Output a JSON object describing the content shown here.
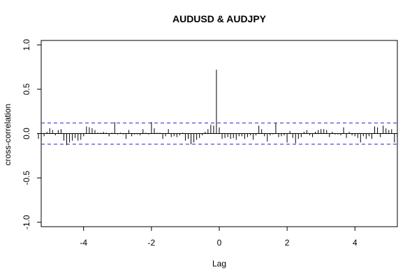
{
  "chart_data": {
    "type": "bar",
    "title": "AUDUSD & AUDJPY",
    "xlabel": "Lag",
    "ylabel": "cross-correlation",
    "xlim": [
      -5.25,
      5.25
    ],
    "ylim": [
      -1.05,
      1.05
    ],
    "x_ticks": [
      "-4",
      "-2",
      "0",
      "2",
      "4"
    ],
    "y_ticks": [
      "-1.0",
      "-0.5",
      "0.0",
      "0.5",
      "1.0"
    ],
    "confidence_bounds": [
      0.12,
      -0.12
    ],
    "lag_step": 0.0833,
    "colors": {
      "bars": "#000000",
      "bounds": "#2222cc",
      "axes": "#000000"
    },
    "values": [
      -0.06,
      -0.08,
      -0.03,
      0.02,
      0.06,
      0.04,
      -0.02,
      0.04,
      0.05,
      -0.08,
      -0.13,
      -0.1,
      -0.08,
      -0.05,
      -0.08,
      -0.07,
      -0.03,
      0.08,
      0.07,
      0.06,
      0.04,
      0.01,
      0.01,
      0.02,
      0.01,
      -0.03,
      0.01,
      0.13,
      -0.01,
      0.01,
      -0.01,
      -0.06,
      0.04,
      -0.03,
      -0.01,
      -0.01,
      -0.02,
      0.05,
      0.01,
      -0.01,
      0.13,
      0.06,
      0.01,
      0.01,
      -0.06,
      -0.03,
      0.05,
      -0.04,
      -0.03,
      -0.04,
      -0.02,
      0.01,
      -0.08,
      -0.06,
      -0.12,
      -0.1,
      -0.07,
      -0.05,
      -0.02,
      0.02,
      0.05,
      0.1,
      0.09,
      0.72,
      0.07,
      -0.06,
      -0.05,
      -0.04,
      -0.06,
      -0.05,
      -0.07,
      -0.03,
      -0.03,
      -0.06,
      -0.04,
      -0.02,
      -0.07,
      -0.02,
      0.09,
      0.05,
      -0.03,
      -0.09,
      -0.02,
      -0.01,
      0.12,
      -0.04,
      -0.03,
      -0.02,
      -0.1,
      0.03,
      -0.05,
      -0.11,
      -0.06,
      -0.04,
      0.02,
      0.04,
      -0.02,
      -0.04,
      0.02,
      0.04,
      0.05,
      0.05,
      0.04,
      -0.04,
      0.02,
      -0.01,
      -0.01,
      -0.02,
      0.07,
      -0.05,
      0.02,
      -0.02,
      -0.03,
      -0.05,
      -0.1,
      -0.03,
      -0.06,
      -0.03,
      -0.06,
      0.08,
      0.07,
      -0.04,
      0.09,
      0.06,
      0.04,
      0.05,
      -0.1,
      -0.04
    ]
  }
}
